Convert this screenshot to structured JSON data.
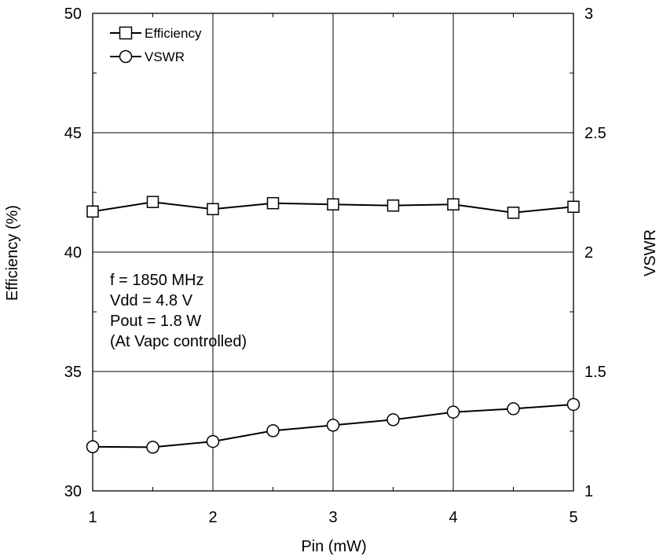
{
  "chart_data": {
    "type": "line",
    "xlabel": "Pin (mW)",
    "ylabel_left": "Efficiency (%)",
    "ylabel_right": "VSWR",
    "xlim": [
      1,
      5
    ],
    "ylim_left": [
      30,
      50
    ],
    "ylim_right": [
      1,
      3
    ],
    "x_ticks": [
      "1",
      "2",
      "3",
      "4",
      "5"
    ],
    "y_left_ticks": [
      "30",
      "35",
      "40",
      "45",
      "50"
    ],
    "y_right_ticks": [
      "1",
      "1.5",
      "2",
      "2.5",
      "3"
    ],
    "grid": true,
    "legend_position": "top-left",
    "annotations": [
      "f = 1850 MHz",
      "Vdd = 4.8 V",
      "Pout = 1.8 W",
      "(At Vapc controlled)"
    ],
    "series": [
      {
        "name": "Efficiency",
        "axis": "left",
        "marker": "square",
        "x": [
          1,
          1.5,
          2,
          2.5,
          3,
          3.5,
          4,
          4.5,
          5
        ],
        "values": [
          41.7,
          42.1,
          41.8,
          42.05,
          42.0,
          41.95,
          42.0,
          41.65,
          41.9
        ]
      },
      {
        "name": "VSWR",
        "axis": "right",
        "marker": "circle",
        "x": [
          1,
          1.5,
          2,
          2.5,
          3,
          3.5,
          4,
          4.5,
          5
        ],
        "values": [
          1.185,
          1.183,
          1.207,
          1.252,
          1.275,
          1.298,
          1.33,
          1.344,
          1.362
        ]
      }
    ]
  }
}
